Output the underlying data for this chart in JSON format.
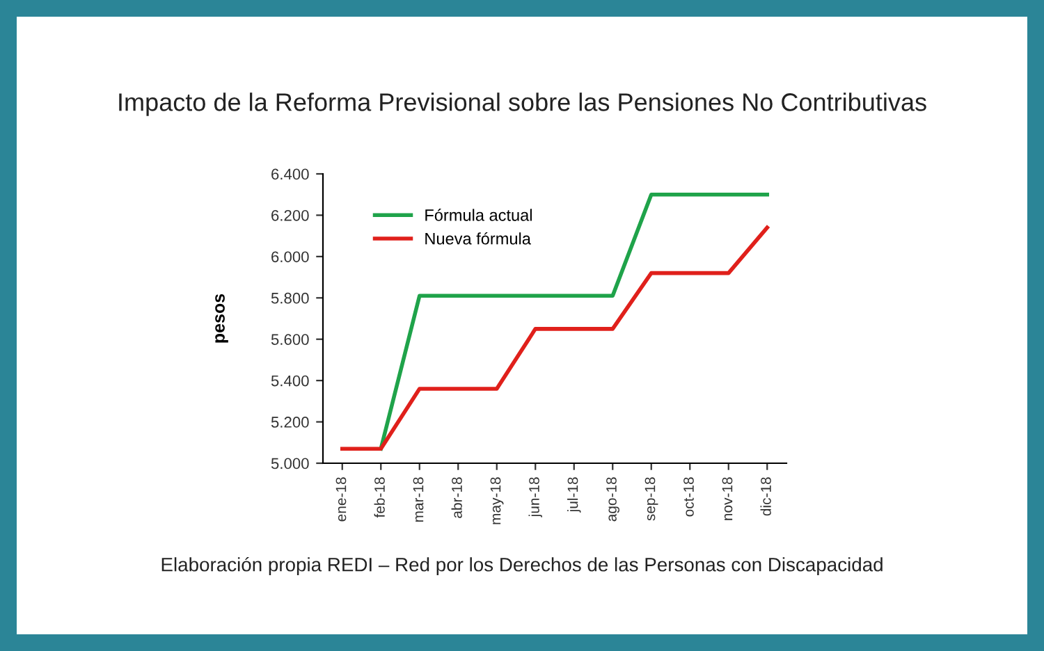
{
  "chart_data": {
    "type": "line",
    "title": "Impacto de la Reforma Previsional sobre las Pensiones No Contributivas",
    "ylabel": "pesos",
    "categories": [
      "ene-18",
      "feb-18",
      "mar-18",
      "abr-18",
      "may-18",
      "jun-18",
      "jul-18",
      "ago-18",
      "sep-18",
      "oct-18",
      "nov-18",
      "dic-18"
    ],
    "series": [
      {
        "name": "Fórmula actual",
        "color": "#1fa34a",
        "values": [
          null,
          5070,
          5810,
          5810,
          5810,
          5810,
          5810,
          5810,
          6300,
          6300,
          6300,
          6300
        ]
      },
      {
        "name": "Nueva fórmula",
        "color": "#e0201b",
        "values": [
          5070,
          5070,
          5360,
          5360,
          5360,
          5650,
          5650,
          5650,
          5920,
          5920,
          5920,
          6140
        ]
      }
    ],
    "ylim": [
      5000,
      6400
    ],
    "yticks": [
      {
        "value": 5000,
        "label": "5.000"
      },
      {
        "value": 5200,
        "label": "5.200"
      },
      {
        "value": 5400,
        "label": "5.400"
      },
      {
        "value": 5600,
        "label": "5.600"
      },
      {
        "value": 5800,
        "label": "5.800"
      },
      {
        "value": 6000,
        "label": "6.000"
      },
      {
        "value": 6200,
        "label": "6.200"
      },
      {
        "value": 6400,
        "label": "6.400"
      }
    ],
    "legend": "top left",
    "grid": false,
    "marker": "none",
    "line_style": "solid",
    "annotations": [
      "Elaboración propia REDI – Red por los Derechos de las Personas con Discapacidad"
    ]
  }
}
